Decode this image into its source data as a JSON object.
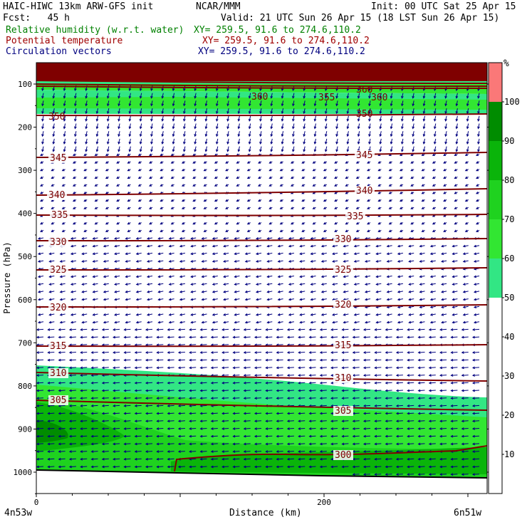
{
  "header": {
    "model": "HAIC-HIWC 13km ARW-GFS init",
    "org": "NCAR/MMM",
    "init": "Init: 00 UTC Sat 25 Apr 15",
    "fcst": "Fcst:   45 h",
    "valid": "Valid: 21 UTC Sun 26 Apr 15 (18 LST Sun 26 Apr 15)",
    "fields": [
      {
        "label": "Relative humidity (w.r.t. water)",
        "xy": "XY= 259.5, 91.6 to 274.6,110.2",
        "color": "#008000"
      },
      {
        "label": "Potential temperature",
        "xy": "XY= 259.5, 91.6 to 274.6,110.2",
        "color": "#a00000"
      },
      {
        "label": "Circulation vectors",
        "xy": "XY= 259.5, 91.6 to 274.6,110.2",
        "color": "#00007f"
      }
    ]
  },
  "chart_data": {
    "type": "cross-section",
    "xlabel": "Distance (km)",
    "ylabel": "Pressure (hPa)",
    "x_ticks": [
      "0",
      "200"
    ],
    "x_range_km": [
      0,
      300
    ],
    "x_endpoints": [
      "4n53w",
      "6n51w"
    ],
    "y_ticks": [
      "100",
      "200",
      "300",
      "400",
      "500",
      "600",
      "700",
      "800",
      "900",
      "1000"
    ],
    "y_range_hpa": [
      50,
      1050
    ],
    "colorbar": {
      "unit": "%",
      "labels": [
        "10",
        "20",
        "30",
        "40",
        "50",
        "60",
        "70",
        "80",
        "90",
        "100"
      ],
      "fill_bins": [
        {
          "from": 50,
          "to": 60,
          "color": "#32e684"
        },
        {
          "from": 60,
          "to": 70,
          "color": "#32e632"
        },
        {
          "from": 70,
          "to": 80,
          "color": "#1fd21f"
        },
        {
          "from": 80,
          "to": 90,
          "color": "#0ab40a"
        },
        {
          "from": 90,
          "to": 100,
          "color": "#008c00"
        },
        {
          "from": 100,
          "to": 110,
          "color": "#fa7878"
        }
      ]
    },
    "theta_contours": [
      {
        "value": "360",
        "labels": [
          "360",
          "360",
          "360"
        ]
      },
      {
        "value": "355",
        "labels": [
          "355"
        ]
      },
      {
        "value": "350",
        "labels": [
          "350",
          "350"
        ]
      },
      {
        "value": "345",
        "labels": [
          "345",
          "345"
        ]
      },
      {
        "value": "340",
        "labels": [
          "340",
          "340"
        ]
      },
      {
        "value": "335",
        "labels": [
          "335",
          "335"
        ]
      },
      {
        "value": "330",
        "labels": [
          "330",
          "330"
        ]
      },
      {
        "value": "325",
        "labels": [
          "325",
          "325"
        ]
      },
      {
        "value": "320",
        "labels": [
          "320",
          "320"
        ]
      },
      {
        "value": "315",
        "labels": [
          "315",
          "315"
        ]
      },
      {
        "value": "310",
        "labels": [
          "310",
          "310"
        ]
      },
      {
        "value": "305",
        "labels": [
          "305",
          "305"
        ]
      },
      {
        "value": "300",
        "labels": [
          "300"
        ]
      }
    ],
    "colors": {
      "theta": "#7f0000",
      "vectors": "#00007f",
      "ground": "#000000",
      "stratosphere_rh": "#7f0000"
    }
  }
}
